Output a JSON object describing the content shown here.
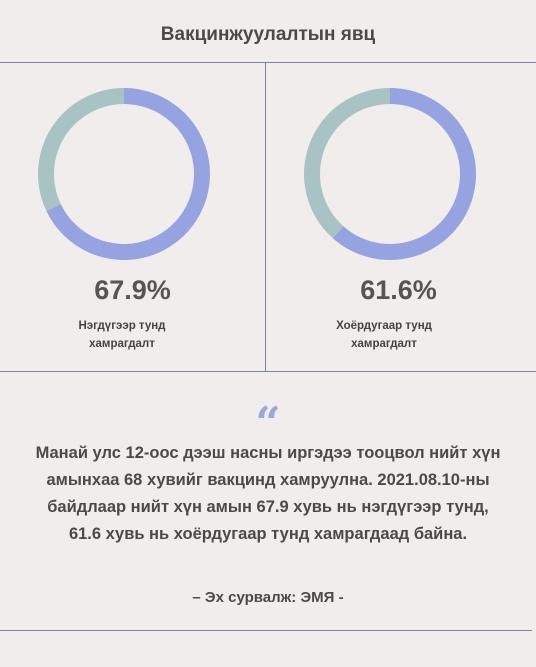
{
  "header": {
    "title": "Вакцинжуулалтын явц"
  },
  "chart_data": [
    {
      "type": "pie",
      "values": [
        67.9,
        32.1
      ],
      "value_label": "67.9%",
      "caption": "Нэгдүгээр тунд хамрагдалт"
    },
    {
      "type": "pie",
      "values": [
        61.6,
        38.4
      ],
      "value_label": "61.6%",
      "caption": "Хоёрдугаар тунд хамрагдалт"
    }
  ],
  "colors": {
    "filled": "#97a3e0",
    "remaining": "#a9c2c3",
    "quote": "#9ea6da"
  },
  "quote": {
    "mark": "“",
    "text": "Манай улс 12-оос дээш насны иргэдээ тооцвол нийт хүн амынхаа 68 хувийг вакцинд хамруулна. 2021.08.10-ны байдлаар нийт хүн амын 67.9 хувь нь нэгдүгээр тунд, 61.6 хувь нь хоёрдугаар тунд хамрагдаад байна.",
    "source": "– Эх сурвалж: ЭМЯ -"
  }
}
